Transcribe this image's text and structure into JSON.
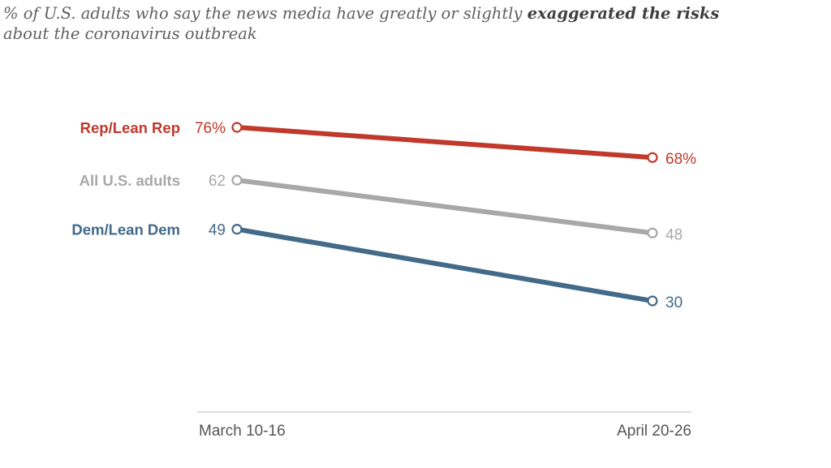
{
  "chart_data": {
    "type": "line",
    "title_parts": {
      "pre": "% of U.S. adults who say the news media have greatly or slightly ",
      "emphasis": "exaggerated the risks",
      "post": "about the coronavirus outbreak"
    },
    "categories": [
      "March 10-16",
      "April 20-26"
    ],
    "ylim": [
      20,
      85
    ],
    "series": [
      {
        "name": "Rep/Lean Rep",
        "values": [
          76,
          68
        ],
        "labels": [
          "76%",
          "68%"
        ],
        "color": "#c0392b"
      },
      {
        "name": "All U.S. adults",
        "values": [
          62,
          48
        ],
        "labels": [
          "62",
          "48"
        ],
        "color": "#a8a8ab"
      },
      {
        "name": "Dem/Lean Dem",
        "values": [
          49,
          30
        ],
        "labels": [
          "49",
          "30"
        ],
        "color": "#436a88"
      }
    ],
    "axis_color": "#c8c8c8",
    "tick_text_color": "#555555",
    "grid": false,
    "legend": "inline-left"
  }
}
